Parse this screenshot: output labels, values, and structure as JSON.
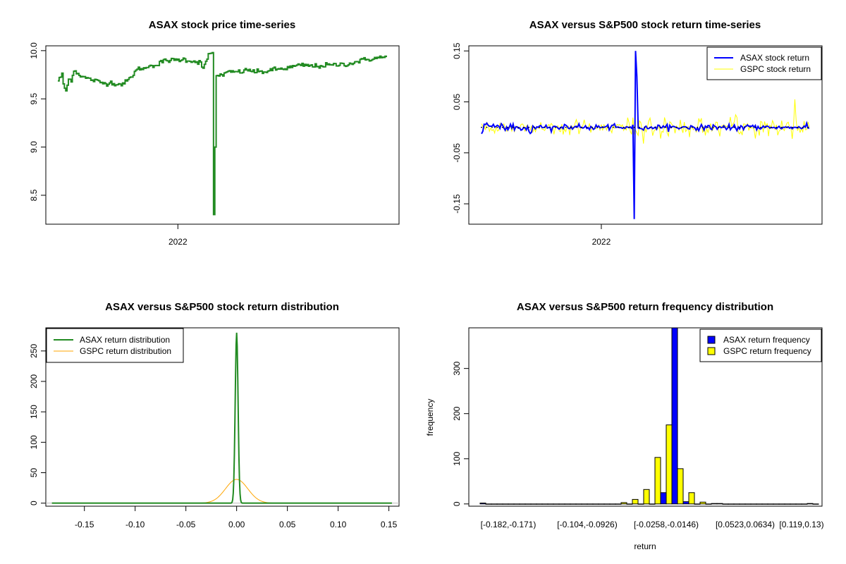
{
  "colors": {
    "price": "#228B22",
    "asax_return": "#0000FF",
    "gspc_return": "#FFFF00",
    "asax_density": "#228B22",
    "gspc_density": "#FFA500",
    "asax_bar": "#0000FF",
    "gspc_bar": "#FFFF00",
    "axis": "#000000"
  },
  "chart_data": [
    {
      "type": "line",
      "title": "ASAX stock price time-series",
      "xlabel": "",
      "ylabel": "",
      "x_tick_labels": [
        "2022"
      ],
      "y_ticks": [
        8.5,
        9.0,
        9.5,
        10.0
      ],
      "y_tick_labels": [
        "8.5",
        "9.0",
        "9.5",
        "10.0"
      ],
      "ylim": [
        8.2,
        10.05
      ],
      "n_points": 250,
      "x_tick_index": 91,
      "series": [
        {
          "name": "ASAX price",
          "keyframes": [
            [
              0,
              9.69
            ],
            [
              3,
              9.75
            ],
            [
              4,
              9.65
            ],
            [
              6,
              9.58
            ],
            [
              8,
              9.7
            ],
            [
              10,
              9.7
            ],
            [
              12,
              9.8
            ],
            [
              15,
              9.76
            ],
            [
              20,
              9.72
            ],
            [
              25,
              9.7
            ],
            [
              30,
              9.68
            ],
            [
              35,
              9.66
            ],
            [
              40,
              9.67
            ],
            [
              45,
              9.65
            ],
            [
              50,
              9.66
            ],
            [
              55,
              9.72
            ],
            [
              58,
              9.78
            ],
            [
              62,
              9.82
            ],
            [
              66,
              9.81
            ],
            [
              70,
              9.86
            ],
            [
              74,
              9.84
            ],
            [
              78,
              9.88
            ],
            [
              82,
              9.9
            ],
            [
              88,
              9.9
            ],
            [
              95,
              9.91
            ],
            [
              102,
              9.89
            ],
            [
              108,
              9.88
            ],
            [
              110,
              9.8
            ],
            [
              112,
              9.88
            ],
            [
              114,
              9.96
            ],
            [
              117,
              9.98
            ],
            [
              118,
              8.3
            ],
            [
              119,
              9.0
            ],
            [
              120,
              9.74
            ],
            [
              124,
              9.75
            ],
            [
              128,
              9.77
            ],
            [
              132,
              9.78
            ],
            [
              138,
              9.78
            ],
            [
              144,
              9.8
            ],
            [
              150,
              9.78
            ],
            [
              156,
              9.78
            ],
            [
              162,
              9.8
            ],
            [
              168,
              9.81
            ],
            [
              174,
              9.82
            ],
            [
              180,
              9.84
            ],
            [
              186,
              9.85
            ],
            [
              192,
              9.84
            ],
            [
              198,
              9.84
            ],
            [
              204,
              9.85
            ],
            [
              210,
              9.85
            ],
            [
              215,
              9.86
            ],
            [
              220,
              9.86
            ],
            [
              225,
              9.88
            ],
            [
              230,
              9.9
            ],
            [
              235,
              9.91
            ],
            [
              240,
              9.92
            ],
            [
              245,
              9.93
            ],
            [
              249,
              9.93
            ]
          ]
        }
      ]
    },
    {
      "type": "line",
      "title": "ASAX versus S&P500 stock return time-series",
      "xlabel": "",
      "ylabel": "",
      "x_tick_labels": [
        "2022"
      ],
      "y_ticks": [
        -0.15,
        -0.05,
        0.05,
        0.15
      ],
      "y_tick_labels": [
        "-0.15",
        "-0.05",
        "0.05",
        "0.15"
      ],
      "ylim": [
        -0.19,
        0.16
      ],
      "n_points": 250,
      "x_tick_index": 91,
      "series": [
        {
          "name": "ASAX stock return",
          "spikes": [
            [
              116,
              -0.18
            ],
            [
              117,
              0.15
            ],
            [
              118,
              0.1
            ]
          ],
          "noise_sd": 0.0025
        },
        {
          "name": "GSPC stock return",
          "noise_sd": 0.012,
          "late_noise_sd": 0.02
        }
      ],
      "legend": [
        "ASAX stock return",
        "GSPC stock return"
      ],
      "legend_position": "top-right"
    },
    {
      "type": "line",
      "title": "ASAX versus S&P500 stock return distribution",
      "xlabel": "",
      "ylabel": "",
      "x_ticks": [
        -0.15,
        -0.1,
        -0.05,
        0.0,
        0.05,
        0.1,
        0.15
      ],
      "x_tick_labels": [
        "-0.15",
        "-0.10",
        "-0.05",
        "0.00",
        "0.05",
        "0.10",
        "0.15"
      ],
      "y_ticks": [
        0,
        50,
        100,
        150,
        200,
        250
      ],
      "y_tick_labels": [
        "0",
        "50",
        "100",
        "150",
        "200",
        "250"
      ],
      "xlim": [
        -0.188,
        0.16
      ],
      "ylim": [
        -5,
        288
      ],
      "series": [
        {
          "name": "ASAX return distribution",
          "peak": 280,
          "center": 0.0,
          "sd": 0.0014,
          "x_range": [
            -0.182,
            0.153
          ]
        },
        {
          "name": "GSPC return distribution",
          "peak": 39,
          "center": 0.0,
          "sd": 0.011,
          "x_range": [
            -0.045,
            0.035
          ]
        }
      ],
      "legend": [
        "ASAX return distribution",
        "GSPC return distribution"
      ],
      "legend_position": "top-left"
    },
    {
      "type": "bar",
      "title": "ASAX versus S&P500 return frequency distribution",
      "xlabel": "return",
      "ylabel": "frequency",
      "n_bins": 30,
      "x_tick_labels": [
        {
          "bin": 2,
          "label": "[-0.182,-0.171)"
        },
        {
          "bin": 9,
          "label": "[-0.104,-0.0926)"
        },
        {
          "bin": 16,
          "label": "[-0.0258,-0.0146)"
        },
        {
          "bin": 23,
          "label": "[0.0523,0.0634)"
        },
        {
          "bin": 28,
          "label": "[0.119,0.13)"
        }
      ],
      "y_ticks": [
        0,
        100,
        200,
        300
      ],
      "y_tick_labels": [
        "0",
        "100",
        "200",
        "300"
      ],
      "ylim": [
        -5,
        390
      ],
      "series": [
        {
          "name": "ASAX return frequency",
          "values": [
            2,
            0,
            0,
            0,
            0,
            0,
            0,
            0,
            0,
            0,
            0,
            0,
            0,
            0,
            0,
            0,
            25,
            390,
            5,
            0,
            0,
            1,
            0,
            0,
            0,
            0,
            0,
            0,
            0,
            1
          ]
        },
        {
          "name": "GSPC return frequency",
          "values": [
            0,
            0,
            0,
            0,
            0,
            0,
            0,
            0,
            0,
            0,
            0,
            0,
            3,
            10,
            32,
            103,
            175,
            78,
            25,
            4,
            1,
            0,
            0,
            0,
            0,
            0,
            0,
            0,
            0,
            0
          ]
        }
      ],
      "legend": [
        "ASAX return frequency",
        "GSPC return frequency"
      ],
      "legend_position": "top-right"
    }
  ]
}
